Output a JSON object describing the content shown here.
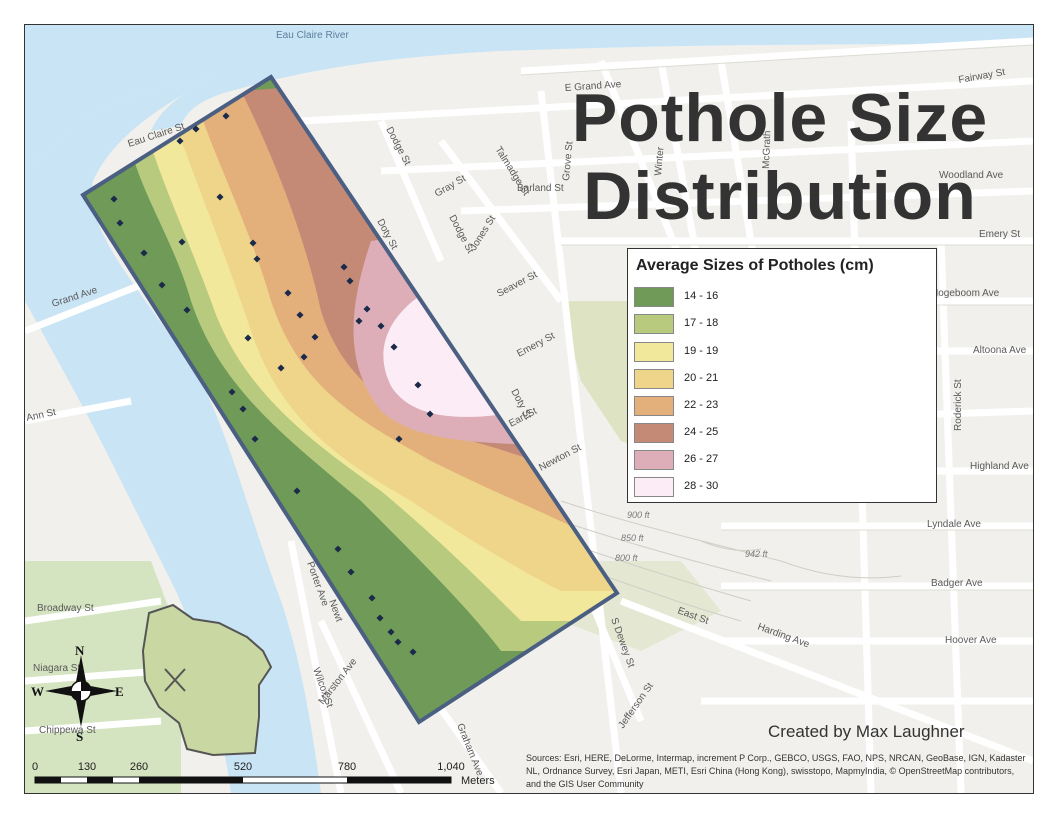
{
  "title_line1": "Pothole Size",
  "title_line2": "Distribution",
  "legend": {
    "title": "Average Sizes of Potholes (cm)",
    "classes": [
      {
        "label": "14 - 16",
        "color": "#6f9a58"
      },
      {
        "label": "17 - 18",
        "color": "#b7ca7e"
      },
      {
        "label": "19 - 19",
        "color": "#f1e89c"
      },
      {
        "label": "20 - 21",
        "color": "#efd58a"
      },
      {
        "label": "22 - 23",
        "color": "#e3b07c"
      },
      {
        "label": "24 - 25",
        "color": "#c48a76"
      },
      {
        "label": "26 - 27",
        "color": "#ddaeb8"
      },
      {
        "label": "28 - 30",
        "color": "#fbecf6"
      }
    ]
  },
  "credit": "Created by Max Laughner",
  "sources": "Sources: Esri, HERE, DeLorme, Intermap, increment P Corp., GEBCO, USGS, FAO, NPS, NRCAN, GeoBase, IGN, Kadaster NL, Ordnance Survey, Esri Japan, METI, Esri China (Hong Kong), swisstopo, MapmyIndia, © OpenStreetMap contributors, and the GIS User Community",
  "scale_bar": {
    "ticks": [
      "0",
      "130",
      "260",
      "520",
      "780",
      "1,040"
    ],
    "units": "Meters"
  },
  "compass": {
    "north": "N",
    "south": "S",
    "east": "E",
    "west": "W"
  },
  "streets": {
    "eau_claire_river": "Eau Claire River",
    "e_grand_ave": "E Grand Ave",
    "fairway_st": "Fairway St",
    "eau_claire_st": "Eau Claire St",
    "dodge_st_1": "Dodge St",
    "dodge_st_2": "Dodge St",
    "grove_st": "Grove St",
    "winter": "Winter",
    "mcgrath": "McGrath",
    "gray_st": "Gray St",
    "barland_st": "Barland St",
    "talmadge_st": "Talmadge St",
    "jones_st": "Jones St",
    "woodland_ave": "Woodland Ave",
    "doty_st_1": "Doty St",
    "doty_st_2": "Doty St",
    "emery_st_1": "Emery St",
    "emery_st_2": "Emery St",
    "grand_ave": "Grand Ave",
    "seaver_st": "Seaver St",
    "hogeboom_ave": "Hogeboom Ave",
    "altoona_ave": "Altoona Ave",
    "earl_st": "Earl St",
    "rodenick_st": "Roderick St",
    "ann_st": "Ann St",
    "highland_ave": "Highland Ave",
    "newton_st": "Newton St",
    "lyndale_ave": "Lyndale Ave",
    "badger_ave": "Badger Ave",
    "east_st": "East St",
    "harding_ave": "Harding Ave",
    "hoover_ave": "Hoover Ave",
    "broadway_st": "Broadway St",
    "porter_ave": "Porter Ave",
    "s_dewey_st": "S Dewey St",
    "niagara_st": "Niagara St",
    "wilcox_st": "Wilcox St",
    "marston_ave": "Marston Ave",
    "chippewa_st": "Chippewa St",
    "jefferson_st": "Jefferson St",
    "graham_ave": "Graham Ave",
    "newt": "Newt"
  },
  "elevations": {
    "e900": "900 ft",
    "e850": "850 ft",
    "e800": "800 ft",
    "e942": "942 ft"
  },
  "pothole_points": [
    [
      113,
      198
    ],
    [
      119,
      222
    ],
    [
      143,
      252
    ],
    [
      161,
      284
    ],
    [
      179,
      140
    ],
    [
      195,
      128
    ],
    [
      225,
      115
    ],
    [
      219,
      196
    ],
    [
      181,
      241
    ],
    [
      186,
      309
    ],
    [
      252,
      242
    ],
    [
      256,
      258
    ],
    [
      247,
      337
    ],
    [
      287,
      292
    ],
    [
      299,
      314
    ],
    [
      314,
      336
    ],
    [
      303,
      356
    ],
    [
      280,
      367
    ],
    [
      231,
      391
    ],
    [
      242,
      408
    ],
    [
      254,
      438
    ],
    [
      343,
      266
    ],
    [
      349,
      280
    ],
    [
      366,
      308
    ],
    [
      358,
      320
    ],
    [
      380,
      325
    ],
    [
      393,
      346
    ],
    [
      417,
      384
    ],
    [
      429,
      413
    ],
    [
      398,
      438
    ],
    [
      296,
      490
    ],
    [
      337,
      548
    ],
    [
      350,
      571
    ],
    [
      371,
      597
    ],
    [
      379,
      617
    ],
    [
      390,
      631
    ],
    [
      397,
      641
    ],
    [
      412,
      651
    ]
  ]
}
